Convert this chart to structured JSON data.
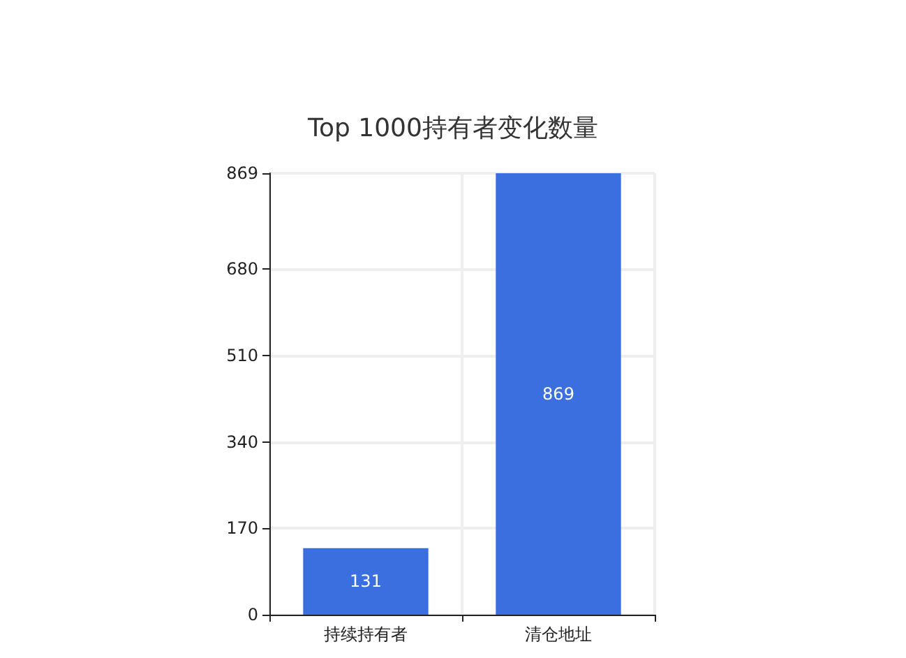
{
  "chart_data": {
    "type": "bar",
    "title": "Top 1000持有者变化数量",
    "categories": [
      "持续持有者",
      "清仓地址"
    ],
    "values": [
      131,
      869
    ],
    "color": "#3b6fe0",
    "ylim": [
      0,
      869
    ],
    "yticks": [
      0,
      170,
      340,
      510,
      680,
      869
    ],
    "grid": true,
    "data_labels": true
  }
}
